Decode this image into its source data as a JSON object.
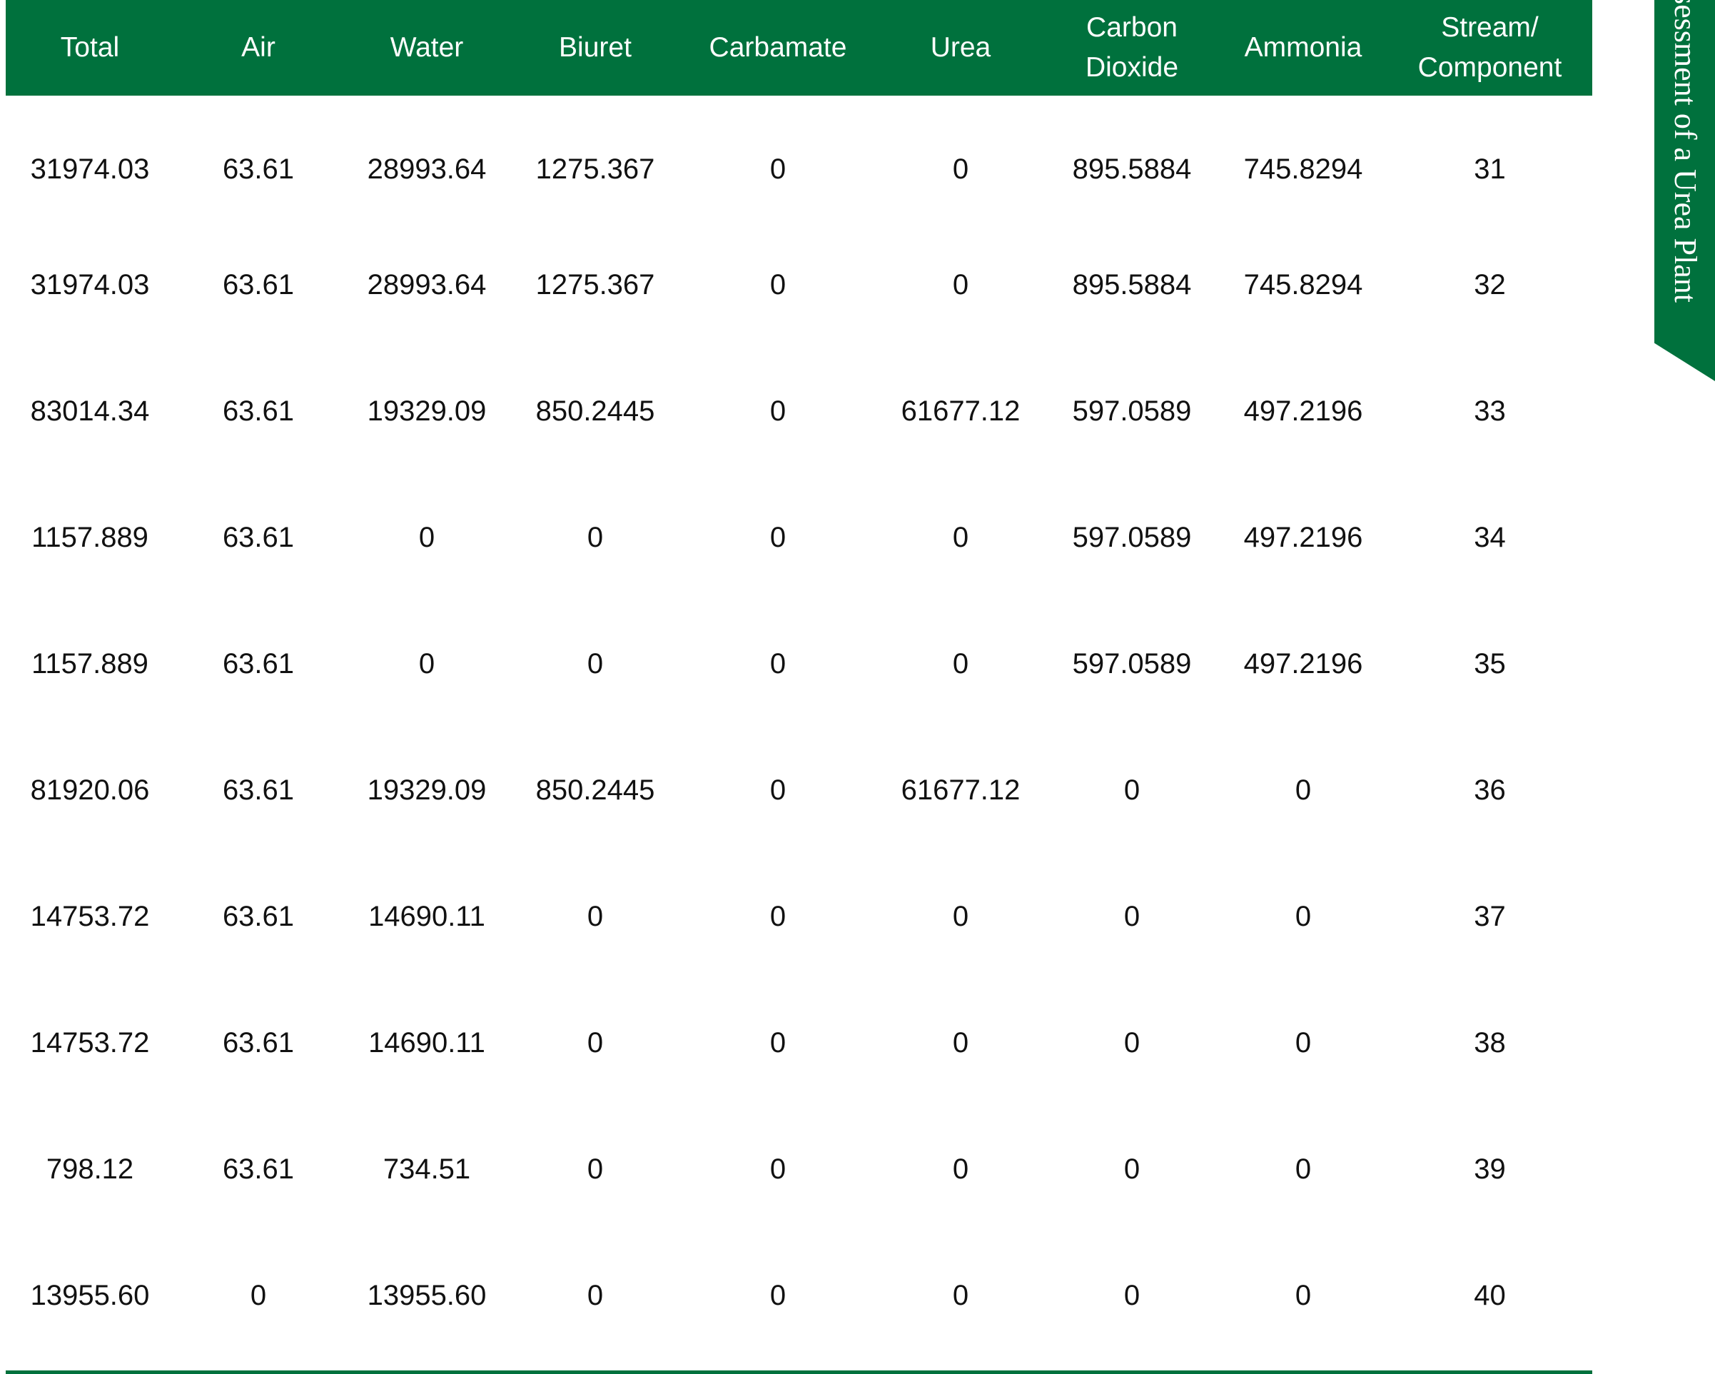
{
  "table": {
    "columns": [
      "Total",
      "Air",
      "Water",
      "Biuret",
      "Carbamate",
      "Urea",
      "Carbon\nDioxide",
      "Ammonia",
      "Stream/\nComponent"
    ],
    "rows": [
      [
        "31974.03",
        "63.61",
        "28993.64",
        "1275.367",
        "0",
        "0",
        "895.5884",
        "745.8294",
        "31"
      ],
      [
        "31974.03",
        "63.61",
        "28993.64",
        "1275.367",
        "0",
        "0",
        "895.5884",
        "745.8294",
        "32"
      ],
      [
        "83014.34",
        "63.61",
        "19329.09",
        "850.2445",
        "0",
        "61677.12",
        "597.0589",
        "497.2196",
        "33"
      ],
      [
        "1157.889",
        "63.61",
        "0",
        "0",
        "0",
        "0",
        "597.0589",
        "497.2196",
        "34"
      ],
      [
        "1157.889",
        "63.61",
        "0",
        "0",
        "0",
        "0",
        "597.0589",
        "497.2196",
        "35"
      ],
      [
        "81920.06",
        "63.61",
        "19329.09",
        "850.2445",
        "0",
        "61677.12",
        "0",
        "0",
        "36"
      ],
      [
        "14753.72",
        "63.61",
        "14690.11",
        "0",
        "0",
        "0",
        "0",
        "0",
        "37"
      ],
      [
        "14753.72",
        "63.61",
        "14690.11",
        "0",
        "0",
        "0",
        "0",
        "0",
        "38"
      ],
      [
        "798.12",
        "63.61",
        "734.51",
        "0",
        "0",
        "0",
        "0",
        "0",
        "39"
      ],
      [
        "13955.60",
        "0",
        "13955.60",
        "0",
        "0",
        "0",
        "0",
        "0",
        "40"
      ]
    ]
  },
  "side_tab": {
    "text": "Assessment of a Urea Plant"
  },
  "colors": {
    "accent": "#00713d"
  }
}
